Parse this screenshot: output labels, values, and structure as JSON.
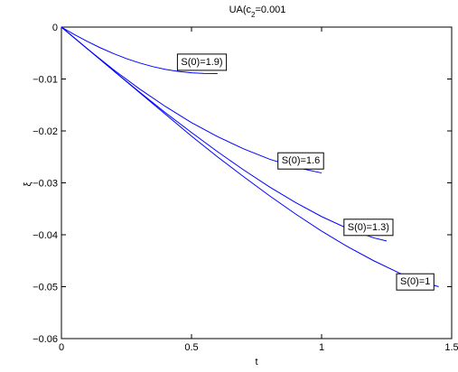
{
  "chart_data": {
    "type": "line",
    "title_main": "UA(c",
    "title_sub": "2",
    "title_tail": "=0.001",
    "xlabel": "t",
    "ylabel": "ξ",
    "xlim": [
      0,
      1.5
    ],
    "ylim": [
      -0.06,
      0
    ],
    "xticks": [
      0,
      0.5,
      1,
      1.5
    ],
    "xtick_labels": [
      "0",
      "0.5",
      "1",
      "1.5"
    ],
    "yticks": [
      0,
      -0.01,
      -0.02,
      -0.03,
      -0.04,
      -0.05,
      -0.06
    ],
    "ytick_labels": [
      "0",
      "−0.01",
      "−0.02",
      "−0.03",
      "−0.04",
      "−0.05",
      "−0.06"
    ],
    "grid": false,
    "line_color": "#0000ff",
    "series": [
      {
        "x": [
          0,
          0.05,
          0.1,
          0.15,
          0.2,
          0.25,
          0.3,
          0.35,
          0.4,
          0.45,
          0.5,
          0.55,
          0.6
        ],
        "y": [
          0,
          -0.00145,
          -0.00278,
          -0.004,
          -0.0051,
          -0.00608,
          -0.0069,
          -0.0076,
          -0.00815,
          -0.00855,
          -0.0088,
          -0.00893,
          -0.00895
        ]
      },
      {
        "x": [
          0,
          0.1,
          0.2,
          0.3,
          0.4,
          0.5,
          0.6,
          0.7,
          0.8,
          0.9,
          1.0
        ],
        "y": [
          0,
          -0.0042,
          -0.0082,
          -0.0119,
          -0.0153,
          -0.0184,
          -0.0211,
          -0.02345,
          -0.02545,
          -0.027,
          -0.0281
        ]
      },
      {
        "x": [
          0,
          0.1,
          0.2,
          0.3,
          0.4,
          0.5,
          0.6,
          0.7,
          0.8,
          0.9,
          1.0,
          1.1,
          1.2,
          1.25
        ],
        "y": [
          0,
          -0.0042,
          -0.0084,
          -0.0125,
          -0.0165,
          -0.0203,
          -0.024,
          -0.0275,
          -0.0308,
          -0.0338,
          -0.0365,
          -0.0388,
          -0.0406,
          -0.0412
        ]
      },
      {
        "x": [
          0,
          0.1,
          0.2,
          0.3,
          0.4,
          0.5,
          0.6,
          0.7,
          0.8,
          0.9,
          1.0,
          1.1,
          1.2,
          1.3,
          1.4,
          1.45
        ],
        "y": [
          0,
          -0.0042,
          -0.0084,
          -0.0126,
          -0.0168,
          -0.021,
          -0.025,
          -0.0288,
          -0.0325,
          -0.036,
          -0.0393,
          -0.0423,
          -0.045,
          -0.0474,
          -0.0493,
          -0.05
        ]
      }
    ],
    "annotations": [
      {
        "text": "S(0)=1.9)",
        "x": 0.54,
        "y": -0.0066
      },
      {
        "text": "S(0)=1.6",
        "x": 0.92,
        "y": -0.0256
      },
      {
        "text": "S(0)=1.3)",
        "x": 1.18,
        "y": -0.0384
      },
      {
        "text": "S(0)=1",
        "x": 1.36,
        "y": -0.0489
      }
    ]
  }
}
